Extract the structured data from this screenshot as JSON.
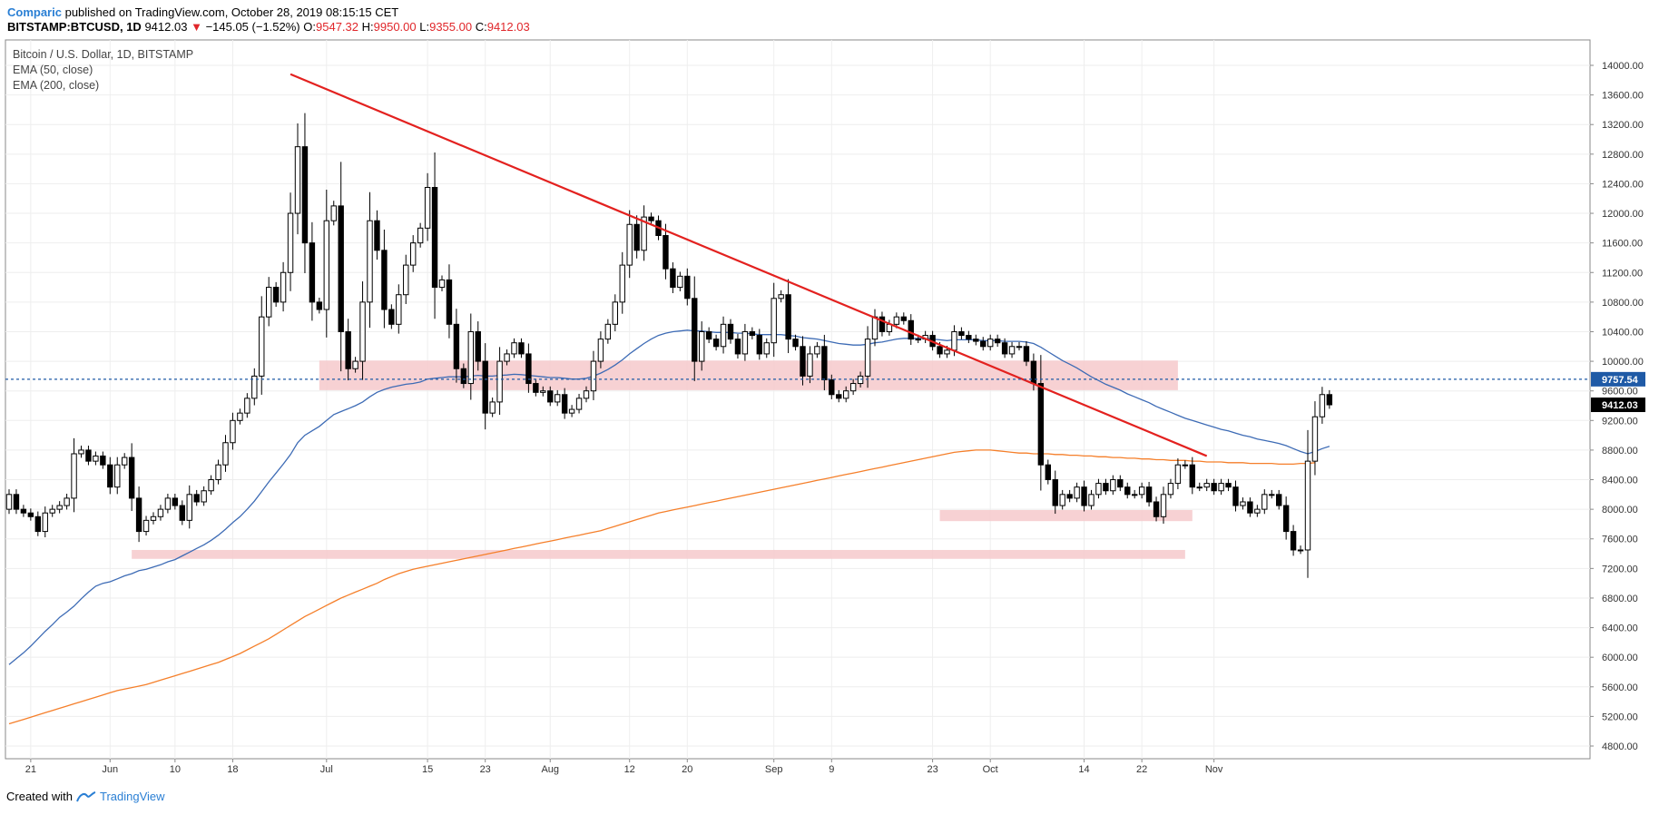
{
  "header": {
    "author": "Comparic",
    "published": "published on TradingView.com, October 28, 2019 08:15:15 CET",
    "symbol": "BITSTAMP:BTCUSD, 1D",
    "last": "9412.03",
    "arrow": "▼",
    "change": "−145.05 (−1.52%)",
    "o_label": "O:",
    "o_value": "9547.32",
    "h_label": "H:",
    "h_value": "9950.00",
    "l_label": "L:",
    "l_value": "9355.00",
    "c_label": "C:",
    "c_value": "9412.03"
  },
  "legend": {
    "title": "Bitcoin / U.S. Dollar, 1D, BITSTAMP",
    "ema50": "EMA (50, close)",
    "ema200": "EMA (200, close)"
  },
  "footer": {
    "created": "Created with",
    "brand": "TradingView"
  },
  "colors": {
    "ema50": "#3d6bb5",
    "ema200": "#f57f2a",
    "trendline": "#e3211f",
    "zone": "#f6c9cb",
    "dashed": "#1f5aa6",
    "bull": "#ffffff",
    "bear": "#000000",
    "tag_blue": "#1f5aa6",
    "tag_black": "#000000"
  },
  "chart_data": {
    "type": "candlestick",
    "interval": "1D",
    "ylim": [
      4800,
      14000
    ],
    "y_ticks": [
      4800,
      5200,
      5600,
      6000,
      6400,
      6800,
      7200,
      7600,
      8000,
      8400,
      8800,
      9200,
      9600,
      10000,
      10400,
      10800,
      11200,
      11600,
      12000,
      12400,
      12800,
      13200,
      13600,
      14000
    ],
    "x_range": [
      "2019-05-18",
      "2019-11-01"
    ],
    "x_ticks": [
      {
        "date": "2019-05-21",
        "label": "21"
      },
      {
        "date": "2019-06-01",
        "label": "Jun"
      },
      {
        "date": "2019-06-10",
        "label": "10"
      },
      {
        "date": "2019-06-18",
        "label": "18"
      },
      {
        "date": "2019-07-01",
        "label": "Jul"
      },
      {
        "date": "2019-07-15",
        "label": "15"
      },
      {
        "date": "2019-07-23",
        "label": "23"
      },
      {
        "date": "2019-08-01",
        "label": "Aug"
      },
      {
        "date": "2019-08-12",
        "label": "12"
      },
      {
        "date": "2019-08-20",
        "label": "20"
      },
      {
        "date": "2019-09-01",
        "label": "Sep"
      },
      {
        "date": "2019-09-09",
        "label": "9"
      },
      {
        "date": "2019-09-23",
        "label": "23"
      },
      {
        "date": "2019-10-01",
        "label": "Oct"
      },
      {
        "date": "2019-10-14",
        "label": "14"
      },
      {
        "date": "2019-10-22",
        "label": "22"
      },
      {
        "date": "2019-11-01",
        "label": "Nov"
      }
    ],
    "start_date": "2019-05-18",
    "closes": [
      8200,
      8000,
      7950,
      7900,
      7700,
      7950,
      8000,
      8050,
      8150,
      8750,
      8800,
      8650,
      8720,
      8600,
      8300,
      8600,
      8700,
      8150,
      7700,
      7850,
      7900,
      8000,
      8150,
      8050,
      7850,
      8200,
      8100,
      8250,
      8400,
      8600,
      8900,
      9200,
      9300,
      9500,
      9800,
      10600,
      11000,
      10800,
      11200,
      12000,
      12900,
      11600,
      10800,
      10700,
      11900,
      12100,
      10400,
      9900,
      10000,
      10800,
      11900,
      11500,
      10700,
      10500,
      10900,
      11300,
      11600,
      11800,
      12350,
      11000,
      11100,
      10500,
      9900,
      9700,
      10400,
      10000,
      9300,
      9450,
      10000,
      10100,
      10250,
      10100,
      9700,
      9580,
      9600,
      9450,
      9550,
      9300,
      9350,
      9500,
      9600,
      10000,
      10300,
      10500,
      10800,
      11300,
      11850,
      11500,
      11950,
      11900,
      11700,
      11250,
      11000,
      11150,
      10850,
      10000,
      10400,
      10300,
      10200,
      10500,
      10300,
      10100,
      10400,
      10350,
      10100,
      10250,
      10850,
      10900,
      10300,
      10200,
      9800,
      10100,
      10200,
      9750,
      9550,
      9500,
      9600,
      9700,
      9800,
      10300,
      10600,
      10400,
      10500,
      10600,
      10550,
      10300,
      10300,
      10350,
      10200,
      10100,
      10150,
      10400,
      10350,
      10300,
      10270,
      10200,
      10300,
      10250,
      10100,
      10200,
      10200,
      10000,
      9700,
      8600,
      8400,
      8050,
      8200,
      8150,
      8300,
      8050,
      8200,
      8350,
      8250,
      8400,
      8300,
      8200,
      8200,
      8300,
      8100,
      7900,
      8200,
      8350,
      8600,
      8600,
      8300,
      8300,
      8350,
      8250,
      8350,
      8300,
      8050,
      8100,
      7950,
      8000,
      8200,
      8200,
      8050,
      7700,
      7450,
      7450,
      8650,
      9250,
      9550,
      9412.03
    ],
    "ema50": [
      5900,
      5980,
      6060,
      6150,
      6250,
      6350,
      6440,
      6540,
      6610,
      6690,
      6790,
      6880,
      6960,
      7000,
      7020,
      7060,
      7100,
      7130,
      7170,
      7190,
      7220,
      7250,
      7290,
      7320,
      7370,
      7420,
      7470,
      7520,
      7580,
      7650,
      7730,
      7820,
      7900,
      8000,
      8110,
      8240,
      8370,
      8490,
      8610,
      8740,
      8900,
      9000,
      9060,
      9120,
      9200,
      9280,
      9320,
      9360,
      9400,
      9450,
      9520,
      9580,
      9620,
      9650,
      9670,
      9690,
      9700,
      9720,
      9760,
      9770,
      9780,
      9790,
      9790,
      9790,
      9800,
      9810,
      9800,
      9800,
      9810,
      9815,
      9825,
      9820,
      9810,
      9800,
      9790,
      9780,
      9780,
      9770,
      9760,
      9760,
      9770,
      9800,
      9840,
      9890,
      9950,
      10020,
      10100,
      10170,
      10240,
      10300,
      10350,
      10380,
      10400,
      10410,
      10420,
      10410,
      10410,
      10400,
      10390,
      10390,
      10390,
      10380,
      10380,
      10370,
      10360,
      10360,
      10360,
      10360,
      10350,
      10340,
      10320,
      10310,
      10300,
      10280,
      10260,
      10240,
      10230,
      10220,
      10220,
      10230,
      10250,
      10260,
      10280,
      10300,
      10310,
      10310,
      10310,
      10310,
      10300,
      10290,
      10280,
      10290,
      10290,
      10290,
      10290,
      10280,
      10280,
      10280,
      10270,
      10270,
      10270,
      10260,
      10240,
      10190,
      10130,
      10070,
      10010,
      9960,
      9910,
      9850,
      9790,
      9740,
      9690,
      9650,
      9610,
      9560,
      9520,
      9480,
      9440,
      9390,
      9350,
      9310,
      9270,
      9230,
      9200,
      9170,
      9140,
      9110,
      9080,
      9060,
      9030,
      9000,
      8980,
      8950,
      8930,
      8910,
      8890,
      8860,
      8820,
      8780,
      8750,
      8780,
      8820,
      8850
    ],
    "ema200": [
      5100,
      5130,
      5160,
      5190,
      5220,
      5250,
      5280,
      5310,
      5340,
      5370,
      5400,
      5430,
      5460,
      5490,
      5520,
      5550,
      5570,
      5590,
      5610,
      5630,
      5660,
      5690,
      5720,
      5750,
      5780,
      5810,
      5840,
      5870,
      5900,
      5930,
      5970,
      6010,
      6050,
      6100,
      6150,
      6200,
      6250,
      6310,
      6370,
      6430,
      6490,
      6550,
      6600,
      6650,
      6700,
      6750,
      6800,
      6840,
      6880,
      6920,
      6960,
      7000,
      7050,
      7090,
      7130,
      7160,
      7190,
      7210,
      7230,
      7250,
      7270,
      7290,
      7310,
      7330,
      7350,
      7370,
      7390,
      7410,
      7430,
      7450,
      7470,
      7490,
      7510,
      7530,
      7550,
      7570,
      7590,
      7610,
      7630,
      7650,
      7670,
      7690,
      7710,
      7740,
      7770,
      7800,
      7830,
      7860,
      7890,
      7920,
      7950,
      7970,
      7990,
      8010,
      8030,
      8050,
      8070,
      8090,
      8110,
      8130,
      8150,
      8170,
      8190,
      8210,
      8230,
      8250,
      8270,
      8290,
      8310,
      8330,
      8350,
      8370,
      8390,
      8410,
      8430,
      8450,
      8470,
      8490,
      8510,
      8530,
      8550,
      8570,
      8590,
      8610,
      8630,
      8650,
      8670,
      8690,
      8710,
      8730,
      8750,
      8770,
      8780,
      8790,
      8800,
      8800,
      8800,
      8790,
      8780,
      8770,
      8760,
      8760,
      8750,
      8750,
      8750,
      8740,
      8740,
      8730,
      8730,
      8720,
      8720,
      8710,
      8710,
      8700,
      8700,
      8690,
      8690,
      8680,
      8680,
      8670,
      8670,
      8660,
      8660,
      8660,
      8650,
      8650,
      8640,
      8640,
      8640,
      8630,
      8630,
      8630,
      8620,
      8620,
      8620,
      8620,
      8610,
      8610,
      8610,
      8620,
      8620,
      8630
    ],
    "trendline": [
      {
        "date": "2019-06-26",
        "value": 13880
      },
      {
        "date": "2019-10-31",
        "value": 8720
      }
    ],
    "zones": [
      {
        "from": "2019-06-30",
        "to": "2019-10-27",
        "low": 9610,
        "high": 10010
      },
      {
        "from": "2019-09-24",
        "to": "2019-10-29",
        "low": 7840,
        "high": 7990
      },
      {
        "from": "2019-06-04",
        "to": "2019-10-28",
        "low": 7330,
        "high": 7450
      }
    ],
    "price_line": 9757.54,
    "price_tags": [
      {
        "value": 9757.54,
        "label": "9757.54",
        "color": "#1f5aa6"
      },
      {
        "value": 9412.03,
        "label": "9412.03",
        "color": "#000000"
      }
    ]
  }
}
